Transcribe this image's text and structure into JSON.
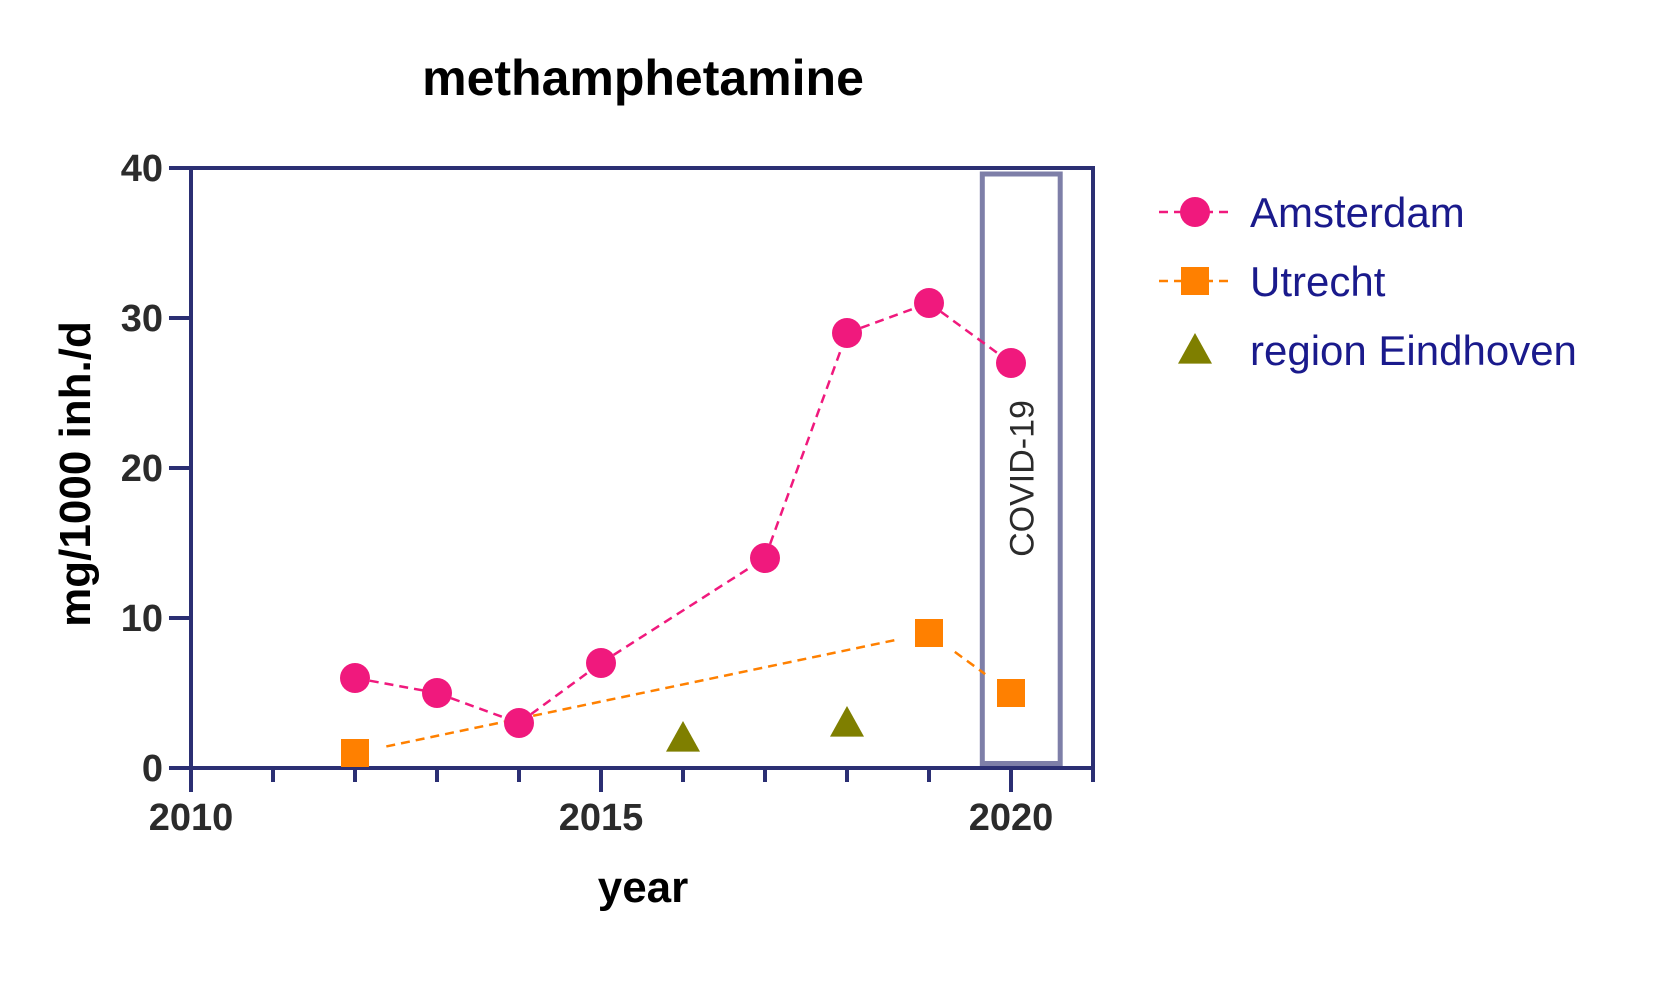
{
  "chart_data": {
    "type": "scatter",
    "title": "methamphetamine",
    "xlabel": "year",
    "ylabel": "mg/1000 inh./d",
    "xlim": [
      2010,
      2021
    ],
    "ylim": [
      0,
      40
    ],
    "xticks": [
      2010,
      2015,
      2020
    ],
    "yticks": [
      0,
      10,
      20,
      30,
      40
    ],
    "grid": false,
    "legend_position": "right",
    "series": [
      {
        "name": "Amsterdam",
        "marker": "circle",
        "color": "#f0197d",
        "line": "dashed",
        "points": [
          [
            2012,
            6
          ],
          [
            2013,
            5
          ],
          [
            2014,
            3
          ],
          [
            2015,
            7
          ],
          [
            2017,
            14
          ],
          [
            2018,
            29
          ],
          [
            2019,
            31
          ],
          [
            2020,
            27
          ]
        ]
      },
      {
        "name": "Utrecht",
        "marker": "square",
        "color": "#ff8000",
        "line": "dashed",
        "points": [
          [
            2012,
            1
          ],
          [
            2019,
            9
          ],
          [
            2020,
            5
          ]
        ]
      },
      {
        "name": "region Eindhoven",
        "marker": "triangle",
        "color": "#7f7f00",
        "line": "none",
        "points": [
          [
            2016,
            2
          ],
          [
            2018,
            3
          ]
        ]
      }
    ],
    "annotations": [
      {
        "text": "COVID-19",
        "x_range": [
          2019.65,
          2020.6
        ],
        "y_range": [
          0.3,
          39.6
        ]
      }
    ]
  },
  "colors": {
    "axis": "#2b2f73",
    "annotation_box": "#7e7fa8"
  }
}
